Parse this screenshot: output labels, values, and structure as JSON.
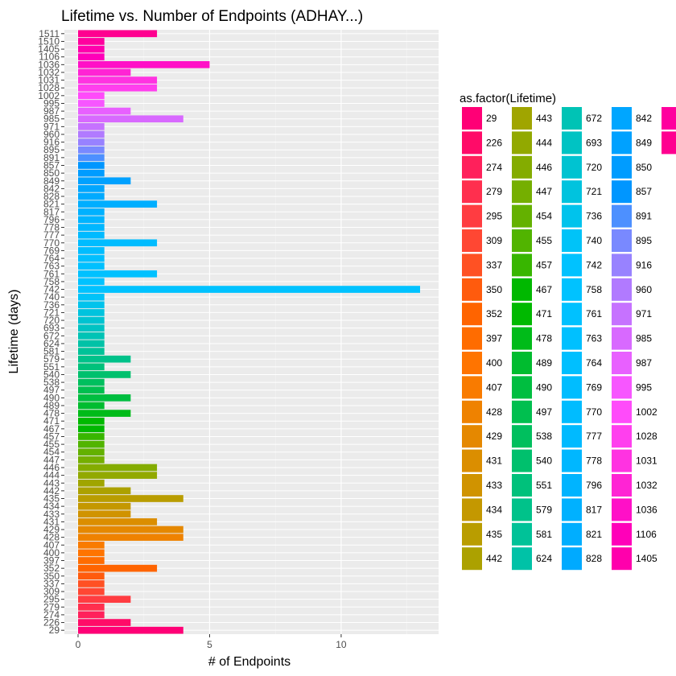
{
  "chart_data": {
    "type": "bar",
    "orientation": "horizontal",
    "title": "Lifetime vs. Number of Endpoints (ADHAY...)",
    "xlabel": "# of Endpoints",
    "ylabel": "Lifetime (days)",
    "xlim": [
      0,
      13.6
    ],
    "xticks": [
      0,
      5,
      10
    ],
    "grid": true,
    "legend_title": "as.factor(Lifetime)",
    "legend_position": "right",
    "categories": [
      "29",
      "226",
      "274",
      "279",
      "295",
      "309",
      "337",
      "350",
      "352",
      "397",
      "400",
      "407",
      "428",
      "429",
      "431",
      "433",
      "434",
      "435",
      "442",
      "443",
      "444",
      "446",
      "447",
      "454",
      "455",
      "457",
      "467",
      "471",
      "478",
      "489",
      "490",
      "497",
      "538",
      "540",
      "551",
      "579",
      "581",
      "624",
      "672",
      "693",
      "720",
      "721",
      "736",
      "740",
      "742",
      "758",
      "761",
      "763",
      "764",
      "769",
      "770",
      "777",
      "778",
      "796",
      "817",
      "821",
      "828",
      "842",
      "849",
      "850",
      "857",
      "891",
      "895",
      "916",
      "960",
      "971",
      "985",
      "987",
      "995",
      "1002",
      "1028",
      "1031",
      "1032",
      "1036",
      "1106",
      "1405",
      "1510",
      "1511"
    ],
    "values": [
      4,
      2,
      1,
      1,
      2,
      1,
      1,
      1,
      3,
      1,
      1,
      1,
      4,
      4,
      3,
      2,
      2,
      4,
      2,
      1,
      3,
      3,
      1,
      1,
      1,
      1,
      1,
      1,
      2,
      1,
      2,
      1,
      1,
      2,
      1,
      2,
      1,
      1,
      1,
      1,
      1,
      1,
      1,
      1,
      13,
      1,
      3,
      1,
      1,
      1,
      3,
      1,
      1,
      1,
      1,
      3,
      1,
      1,
      2,
      1,
      1,
      1,
      1,
      1,
      1,
      1,
      4,
      2,
      1,
      1,
      3,
      3,
      2,
      5,
      1,
      1,
      1,
      3
    ]
  }
}
